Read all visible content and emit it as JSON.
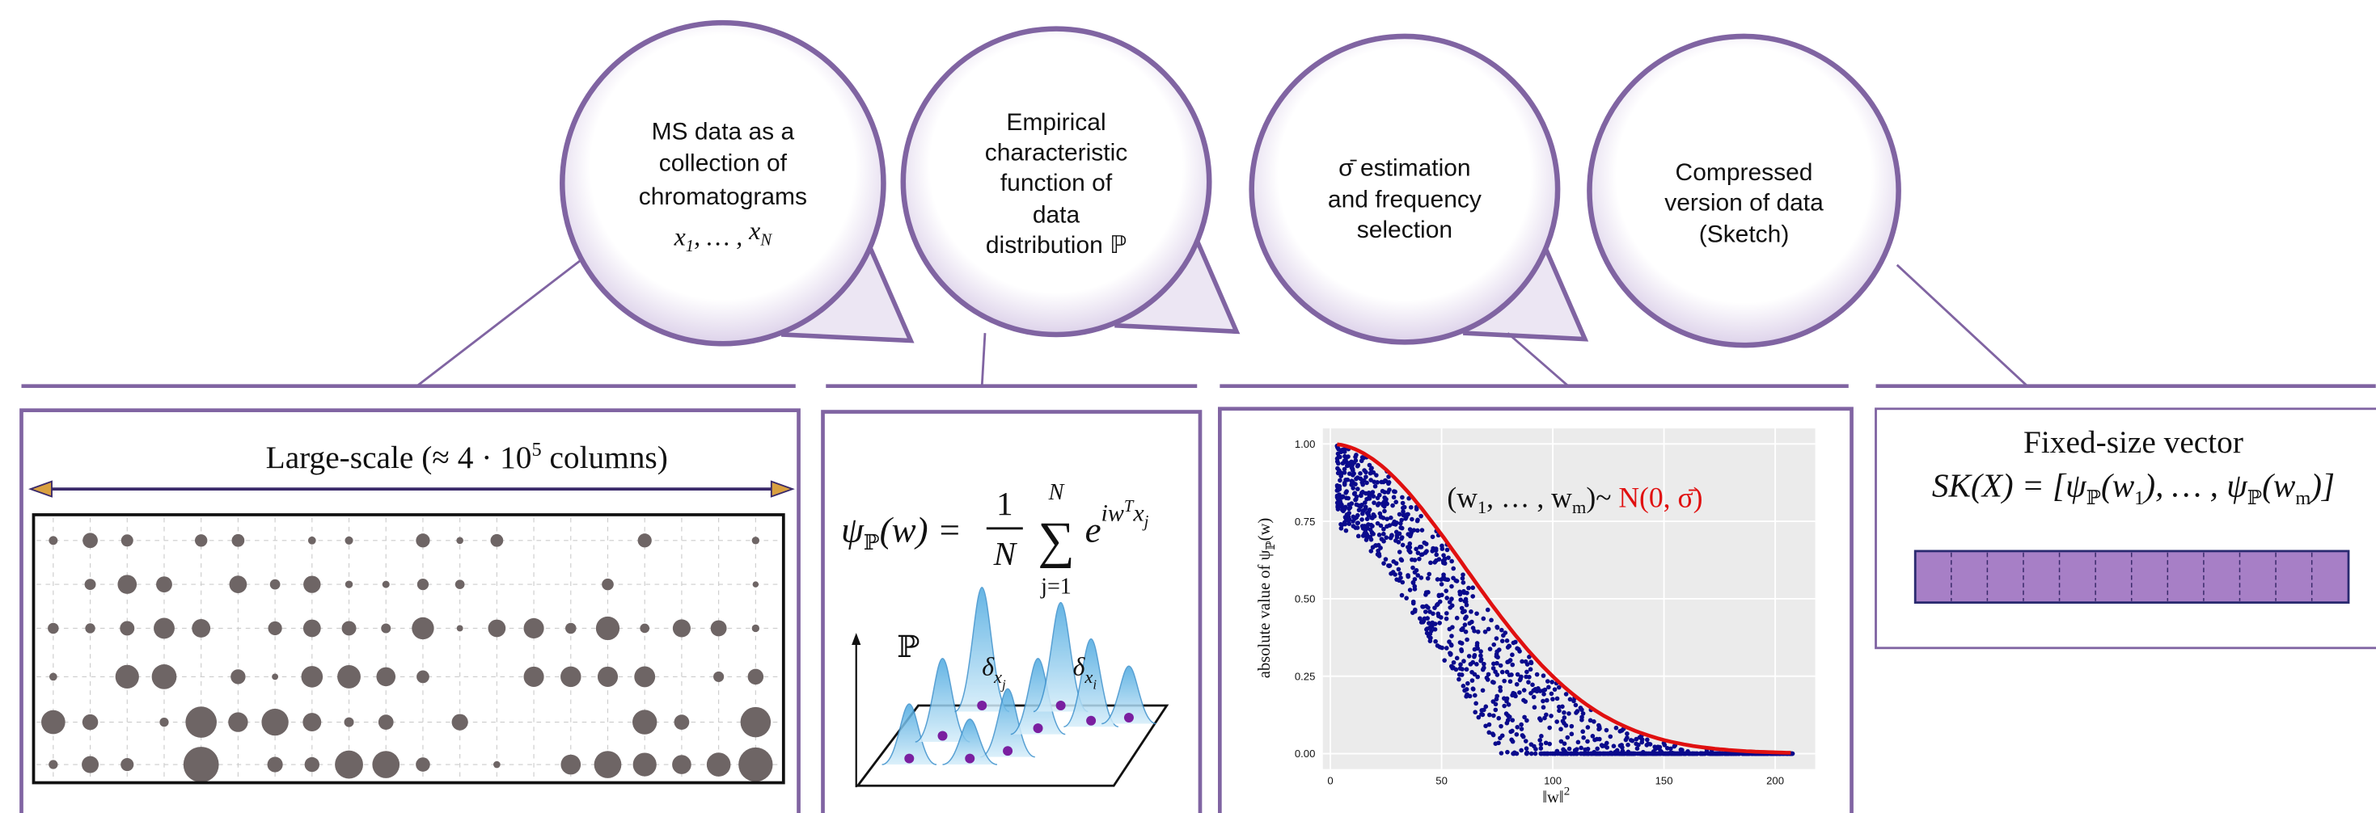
{
  "steps": [
    {
      "lines": [
        "MS data as a",
        "collection of",
        "chromatograms"
      ],
      "math": [
        "x",
        "1",
        ", … , ",
        "x",
        "N"
      ]
    },
    {
      "lines": [
        "Empirical",
        "characteristic",
        "function of",
        "data",
        "distribution ℙ"
      ]
    },
    {
      "lines": [
        "σ̄  estimation",
        "and frequency",
        "selection"
      ]
    },
    {
      "lines": [
        "Compressed",
        "version of data",
        "(Sketch)"
      ]
    }
  ],
  "large_scale": {
    "title": "Large-scale (≈ 4 · 10",
    "exponent": "5",
    "title_end": " columns)"
  },
  "ecf": {
    "psi": "ψ",
    "measure": "ℙ",
    "lhs": "(w) =",
    "numerator": "1",
    "denominator": "N",
    "sum": "∑",
    "upper": "N",
    "lower": "j=1",
    "base": "e",
    "exponent": "iw",
    "transpose": "T",
    "exp_x": "x",
    "exp_j": "j",
    "delta": "δ",
    "delta_x": "x",
    "delta_j": "j",
    "delta_i": "i"
  },
  "plot": {
    "xlabel": "‖w‖",
    "xlabel_exp": "2",
    "ylabel": "absolute value of ψ",
    "ylabel_sub": "ℙ",
    "ylabel_end": "(w)",
    "annotation": [
      "(w",
      "1",
      ", … , w",
      "m",
      ")~ "
    ],
    "annotation_red": "N(0, σ̄)",
    "xlim": [
      -3.4,
      218
    ],
    "ylim": [
      -0.05,
      1.05
    ],
    "xticks": [
      0,
      50,
      100,
      150,
      200
    ],
    "yticks": [
      {
        "value": 0,
        "label": "0.00"
      },
      {
        "value": 0.25,
        "label": "0.25"
      },
      {
        "value": 0.5,
        "label": "0.50"
      },
      {
        "value": 0.75,
        "label": "0.75"
      },
      {
        "value": 1,
        "label": "1.00"
      }
    ]
  },
  "vector": {
    "title": "Fixed-size vector",
    "parts": [
      "SK(X) = [ψ",
      "ℙ",
      "(w",
      "1",
      "), … , ψ",
      "ℙ",
      "(w",
      "m",
      ")]"
    ]
  }
}
